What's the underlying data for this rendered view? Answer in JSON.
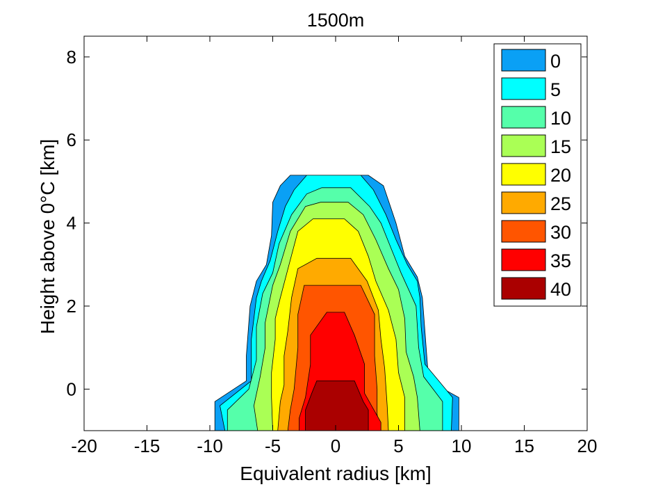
{
  "chart_data": {
    "type": "contour",
    "title": "1500m",
    "xlabel": "Equivalent radius [km]",
    "ylabel": "Height above 0°C [km]",
    "xlim": [
      -20,
      20
    ],
    "ylim": [
      -1,
      8.5
    ],
    "xticks": [
      "-20",
      "-15",
      "-10",
      "-5",
      "0",
      "5",
      "10",
      "15",
      "20"
    ],
    "yticks": [
      "0",
      "2",
      "4",
      "6",
      "8"
    ],
    "legend_position": "top-right",
    "levels": [
      {
        "label": "0",
        "value": 0,
        "color": "#0aa0f5"
      },
      {
        "label": "5",
        "value": 5,
        "color": "#00ffff"
      },
      {
        "label": "10",
        "value": 10,
        "color": "#55ffaa"
      },
      {
        "label": "15",
        "value": 15,
        "color": "#aaff55"
      },
      {
        "label": "20",
        "value": 20,
        "color": "#ffff00"
      },
      {
        "label": "25",
        "value": 25,
        "color": "#ffaa00"
      },
      {
        "label": "30",
        "value": 30,
        "color": "#ff5500"
      },
      {
        "label": "35",
        "value": 35,
        "color": "#ff0000"
      },
      {
        "label": "40",
        "value": 40,
        "color": "#aa0000"
      }
    ],
    "contours": [
      {
        "level": 0,
        "points": [
          [
            -9.6,
            -1
          ],
          [
            -9.6,
            -0.3
          ],
          [
            -7.1,
            0.2
          ],
          [
            -7.1,
            0.8
          ],
          [
            -6.8,
            2.0
          ],
          [
            -6.3,
            2.6
          ],
          [
            -5.5,
            3.0
          ],
          [
            -5.1,
            3.7
          ],
          [
            -5.0,
            4.5
          ],
          [
            -4.4,
            4.9
          ],
          [
            -3.6,
            5.15
          ],
          [
            2.6,
            5.15
          ],
          [
            3.8,
            4.9
          ],
          [
            4.8,
            4.0
          ],
          [
            5.5,
            3.2
          ],
          [
            6.5,
            2.7
          ],
          [
            6.9,
            2.2
          ],
          [
            7.4,
            0.2
          ],
          [
            9.8,
            -0.2
          ],
          [
            9.8,
            -1
          ]
        ]
      },
      {
        "level": 5,
        "points": [
          [
            -8.8,
            -1
          ],
          [
            -9.2,
            -0.4
          ],
          [
            -6.7,
            0.2
          ],
          [
            -6.7,
            1.2
          ],
          [
            -6.3,
            2.2
          ],
          [
            -5.9,
            2.6
          ],
          [
            -5.2,
            3.1
          ],
          [
            -4.6,
            3.8
          ],
          [
            -4.0,
            4.4
          ],
          [
            -3.3,
            4.8
          ],
          [
            -2.3,
            5.15
          ],
          [
            2.0,
            5.15
          ],
          [
            3.0,
            4.8
          ],
          [
            4.0,
            4.2
          ],
          [
            4.8,
            3.6
          ],
          [
            5.7,
            3.0
          ],
          [
            6.5,
            2.6
          ],
          [
            6.7,
            2.2
          ],
          [
            6.8,
            1.5
          ],
          [
            7.1,
            0.6
          ],
          [
            9.3,
            -0.2
          ],
          [
            9.2,
            -1
          ]
        ]
      },
      {
        "level": 10,
        "points": [
          [
            -8.6,
            -1
          ],
          [
            -8.6,
            -0.5
          ],
          [
            -6.9,
            0
          ],
          [
            -6.3,
            0.7
          ],
          [
            -6.3,
            1.5
          ],
          [
            -5.8,
            2.3
          ],
          [
            -5.0,
            2.8
          ],
          [
            -4.5,
            3.5
          ],
          [
            -3.5,
            4.2
          ],
          [
            -2.3,
            4.7
          ],
          [
            -1.1,
            4.85
          ],
          [
            1.2,
            4.85
          ],
          [
            2.7,
            4.4
          ],
          [
            3.6,
            4.0
          ],
          [
            4.4,
            3.4
          ],
          [
            5.2,
            2.8
          ],
          [
            5.8,
            2.4
          ],
          [
            6.4,
            2.0
          ],
          [
            6.6,
            1.0
          ],
          [
            7.0,
            0.3
          ],
          [
            8.5,
            -0.3
          ],
          [
            8.5,
            -1
          ]
        ]
      },
      {
        "level": 15,
        "points": [
          [
            -6.2,
            -1
          ],
          [
            -6.5,
            -0.4
          ],
          [
            -6.0,
            0.3
          ],
          [
            -5.6,
            1.0
          ],
          [
            -5.6,
            1.6
          ],
          [
            -5.0,
            2.5
          ],
          [
            -4.4,
            3.0
          ],
          [
            -3.6,
            3.8
          ],
          [
            -2.4,
            4.4
          ],
          [
            -1.2,
            4.5
          ],
          [
            1.0,
            4.5
          ],
          [
            2.2,
            4.2
          ],
          [
            3.2,
            3.6
          ],
          [
            4.2,
            2.9
          ],
          [
            5.0,
            2.4
          ],
          [
            5.5,
            1.7
          ],
          [
            5.6,
            0.9
          ],
          [
            6.2,
            0.3
          ],
          [
            6.5,
            -0.2
          ],
          [
            6.7,
            -1
          ]
        ]
      },
      {
        "level": 20,
        "points": [
          [
            -5.0,
            -1
          ],
          [
            -5.1,
            -0.2
          ],
          [
            -5.1,
            0.4
          ],
          [
            -4.8,
            1.2
          ],
          [
            -4.8,
            1.7
          ],
          [
            -4.4,
            2.2
          ],
          [
            -3.7,
            3.0
          ],
          [
            -3.0,
            3.8
          ],
          [
            -1.8,
            4.1
          ],
          [
            0.7,
            4.1
          ],
          [
            1.8,
            3.8
          ],
          [
            2.6,
            3.2
          ],
          [
            3.2,
            2.6
          ],
          [
            4.2,
            1.9
          ],
          [
            4.8,
            1.2
          ],
          [
            5.0,
            0.4
          ],
          [
            5.5,
            -0.2
          ],
          [
            5.5,
            -1
          ]
        ]
      },
      {
        "level": 25,
        "points": [
          [
            -4.6,
            -1
          ],
          [
            -4.4,
            -0.3
          ],
          [
            -4.1,
            0.1
          ],
          [
            -4.1,
            0.8
          ],
          [
            -3.8,
            1.4
          ],
          [
            -3.5,
            2.2
          ],
          [
            -3.0,
            2.9
          ],
          [
            -1.5,
            3.15
          ],
          [
            1.2,
            3.15
          ],
          [
            2.5,
            2.6
          ],
          [
            3.4,
            1.9
          ],
          [
            3.6,
            1.2
          ],
          [
            3.9,
            0.5
          ],
          [
            4.1,
            -0.4
          ],
          [
            4.2,
            -1
          ]
        ]
      },
      {
        "level": 30,
        "points": [
          [
            -3.8,
            -1
          ],
          [
            -3.6,
            -0.5
          ],
          [
            -3.3,
            0
          ],
          [
            -3.0,
            1.0
          ],
          [
            -3.0,
            1.8
          ],
          [
            -2.5,
            2.5
          ],
          [
            2.0,
            2.5
          ],
          [
            3.1,
            1.8
          ],
          [
            3.1,
            0.8
          ],
          [
            3.3,
            0
          ],
          [
            3.3,
            -0.6
          ],
          [
            3.5,
            -1
          ]
        ]
      },
      {
        "level": 35,
        "points": [
          [
            -2.9,
            -1
          ],
          [
            -2.9,
            -0.7
          ],
          [
            -2.4,
            -0.2
          ],
          [
            -2.0,
            0.6
          ],
          [
            -2.0,
            1.3
          ],
          [
            -0.7,
            1.85
          ],
          [
            0.7,
            1.85
          ],
          [
            1.5,
            1.3
          ],
          [
            2.3,
            0.6
          ],
          [
            2.3,
            -0.1
          ],
          [
            3.6,
            -0.8
          ],
          [
            3.6,
            -1
          ]
        ]
      },
      {
        "level": 40,
        "points": [
          [
            -2.4,
            -1
          ],
          [
            -2.4,
            -0.5
          ],
          [
            -1.9,
            -0.1
          ],
          [
            -1.5,
            0.2
          ],
          [
            1.5,
            0.2
          ],
          [
            2.2,
            -0.3
          ],
          [
            2.6,
            -0.5
          ],
          [
            2.6,
            -1
          ]
        ]
      }
    ]
  }
}
